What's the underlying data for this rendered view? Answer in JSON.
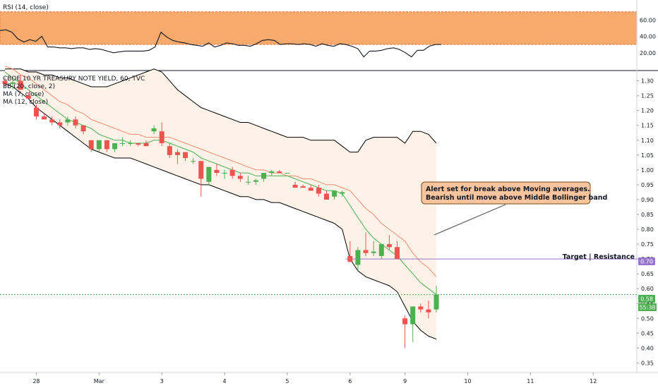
{
  "rsi_panel": {
    "label": "RSI (14, close)",
    "y_ticks": [
      "60.00",
      "40.00",
      "20.00"
    ],
    "band": [
      30,
      70
    ],
    "series": [
      47,
      48,
      45,
      37,
      33,
      36,
      34,
      40,
      27,
      27,
      26,
      26,
      25,
      26,
      26,
      24,
      25,
      24,
      22,
      20,
      21,
      22,
      22,
      22,
      22,
      23,
      27,
      45,
      39,
      35,
      33,
      32,
      30,
      29,
      28,
      32,
      27,
      29,
      32,
      31,
      29,
      29,
      28,
      31,
      35,
      36,
      35,
      30,
      31,
      31,
      30,
      31,
      30,
      28,
      31,
      29,
      28,
      31,
      30,
      28,
      25,
      15,
      22,
      22,
      23,
      25,
      26,
      24,
      20,
      15,
      23,
      23,
      28,
      30,
      30
    ]
  },
  "chart_data": {
    "type": "candlestick",
    "title": "CBOE 10 YR TREASURY NOTE YIELD, 60, TVC",
    "legend": [
      "BB (20, close, 2)",
      "MA (7, close)",
      "MA (12, close)"
    ],
    "x_tick_labels": [
      "28",
      "Mar",
      "3",
      "4",
      "5",
      "6",
      "9",
      "10",
      "11",
      "12"
    ],
    "y_ticks": [
      "1.30",
      "1.25",
      "1.20",
      "1.15",
      "1.10",
      "1.05",
      "1.00",
      "0.95",
      "0.90",
      "0.85",
      "0.80",
      "0.75",
      "0.70",
      "0.65",
      "0.60",
      "0.55",
      "0.50",
      "0.45",
      "0.40",
      "0.35"
    ],
    "ylim": [
      0.32,
      1.33
    ],
    "candles": [
      {
        "o": 1.3,
        "h": 1.31,
        "l": 1.28,
        "c": 1.29
      },
      {
        "o": 1.29,
        "h": 1.305,
        "l": 1.27,
        "c": 1.295
      },
      {
        "o": 1.3,
        "h": 1.32,
        "l": 1.27,
        "c": 1.27
      },
      {
        "o": 1.25,
        "h": 1.26,
        "l": 1.24,
        "c": 1.24
      },
      {
        "o": 1.21,
        "h": 1.22,
        "l": 1.17,
        "c": 1.18
      },
      {
        "o": 1.18,
        "h": 1.19,
        "l": 1.17,
        "c": 1.17
      },
      {
        "o": 1.17,
        "h": 1.18,
        "l": 1.15,
        "c": 1.16
      },
      {
        "o": 1.16,
        "h": 1.17,
        "l": 1.14,
        "c": 1.15
      },
      {
        "o": 1.16,
        "h": 1.18,
        "l": 1.15,
        "c": 1.17
      },
      {
        "o": 1.17,
        "h": 1.18,
        "l": 1.14,
        "c": 1.15
      },
      {
        "o": 1.15,
        "h": 1.15,
        "l": 1.12,
        "c": 1.13
      },
      {
        "o": 1.1,
        "h": 1.1,
        "l": 1.06,
        "c": 1.07
      },
      {
        "o": 1.07,
        "h": 1.1,
        "l": 1.06,
        "c": 1.1
      },
      {
        "o": 1.1,
        "h": 1.1,
        "l": 1.06,
        "c": 1.07
      },
      {
        "o": 1.07,
        "h": 1.09,
        "l": 1.06,
        "c": 1.09
      },
      {
        "o": 1.09,
        "h": 1.11,
        "l": 1.08,
        "c": 1.09
      },
      {
        "o": 1.09,
        "h": 1.1,
        "l": 1.08,
        "c": 1.09
      },
      {
        "o": 1.09,
        "h": 1.09,
        "l": 1.08,
        "c": 1.085
      },
      {
        "o": 1.09,
        "h": 1.1,
        "l": 1.08,
        "c": 1.08
      },
      {
        "o": 1.13,
        "h": 1.15,
        "l": 1.12,
        "c": 1.14
      },
      {
        "o": 1.13,
        "h": 1.16,
        "l": 1.08,
        "c": 1.09
      },
      {
        "o": 1.08,
        "h": 1.09,
        "l": 1.04,
        "c": 1.05
      },
      {
        "o": 1.06,
        "h": 1.07,
        "l": 1.02,
        "c": 1.05
      },
      {
        "o": 1.06,
        "h": 1.06,
        "l": 1.03,
        "c": 1.04
      },
      {
        "o": 1.03,
        "h": 1.04,
        "l": 1.02,
        "c": 1.03
      },
      {
        "o": 1.03,
        "h": 1.03,
        "l": 0.91,
        "c": 0.97
      },
      {
        "o": 0.96,
        "h": 1.01,
        "l": 0.95,
        "c": 1.01
      },
      {
        "o": 1.0,
        "h": 1.02,
        "l": 0.98,
        "c": 0.99
      },
      {
        "o": 0.99,
        "h": 1.0,
        "l": 0.97,
        "c": 0.99
      },
      {
        "o": 1.0,
        "h": 1.01,
        "l": 0.97,
        "c": 0.98
      },
      {
        "o": 0.98,
        "h": 0.99,
        "l": 0.96,
        "c": 0.97
      },
      {
        "o": 0.96,
        "h": 0.98,
        "l": 0.95,
        "c": 0.96
      },
      {
        "o": 0.96,
        "h": 0.97,
        "l": 0.95,
        "c": 0.965
      },
      {
        "o": 0.97,
        "h": 0.99,
        "l": 0.96,
        "c": 0.99
      },
      {
        "o": 0.99,
        "h": 1.0,
        "l": 0.98,
        "c": 0.995
      },
      {
        "o": 0.995,
        "h": 1.0,
        "l": 0.99,
        "c": 0.99
      },
      {
        "o": 0.99,
        "h": 0.99,
        "l": 0.99,
        "c": 0.99
      },
      {
        "o": 0.95,
        "h": 0.96,
        "l": 0.94,
        "c": 0.94
      },
      {
        "o": 0.945,
        "h": 0.95,
        "l": 0.94,
        "c": 0.94
      },
      {
        "o": 0.94,
        "h": 0.95,
        "l": 0.93,
        "c": 0.93
      },
      {
        "o": 0.94,
        "h": 0.95,
        "l": 0.91,
        "c": 0.92
      },
      {
        "o": 0.92,
        "h": 0.93,
        "l": 0.9,
        "c": 0.9
      },
      {
        "o": 0.91,
        "h": 0.93,
        "l": 0.9,
        "c": 0.93
      },
      {
        "o": 0.92,
        "h": 0.93,
        "l": 0.91,
        "c": 0.925
      },
      {
        "o": 0.71,
        "h": 0.76,
        "l": 0.69,
        "c": 0.69
      },
      {
        "o": 0.68,
        "h": 0.74,
        "l": 0.66,
        "c": 0.73
      },
      {
        "o": 0.73,
        "h": 0.79,
        "l": 0.71,
        "c": 0.72
      },
      {
        "o": 0.72,
        "h": 0.76,
        "l": 0.71,
        "c": 0.725
      },
      {
        "o": 0.71,
        "h": 0.75,
        "l": 0.7,
        "c": 0.75
      },
      {
        "o": 0.75,
        "h": 0.78,
        "l": 0.73,
        "c": 0.74
      },
      {
        "o": 0.74,
        "h": 0.76,
        "l": 0.7,
        "c": 0.7
      },
      {
        "o": 0.5,
        "h": 0.51,
        "l": 0.4,
        "c": 0.48
      },
      {
        "o": 0.48,
        "h": 0.54,
        "l": 0.42,
        "c": 0.54
      },
      {
        "o": 0.54,
        "h": 0.55,
        "l": 0.52,
        "c": 0.53
      },
      {
        "o": 0.53,
        "h": 0.56,
        "l": 0.5,
        "c": 0.52
      },
      {
        "o": 0.53,
        "h": 0.61,
        "l": 0.52,
        "c": 0.58
      }
    ],
    "bb_upper": [
      1.34,
      1.34,
      1.34,
      1.33,
      1.33,
      1.32,
      1.32,
      1.31,
      1.31,
      1.3,
      1.29,
      1.28,
      1.28,
      1.28,
      1.29,
      1.3,
      1.31,
      1.32,
      1.33,
      1.34,
      1.33,
      1.3,
      1.27,
      1.25,
      1.23,
      1.21,
      1.2,
      1.19,
      1.18,
      1.17,
      1.16,
      1.16,
      1.15,
      1.14,
      1.13,
      1.12,
      1.11,
      1.11,
      1.11,
      1.1,
      1.1,
      1.1,
      1.1,
      1.08,
      1.06,
      1.06,
      1.1,
      1.11,
      1.11,
      1.11,
      1.11,
      1.09,
      1.13,
      1.13,
      1.12,
      1.09
    ],
    "bb_lower": [
      1.29,
      1.28,
      1.26,
      1.24,
      1.21,
      1.19,
      1.17,
      1.15,
      1.13,
      1.11,
      1.09,
      1.07,
      1.06,
      1.05,
      1.04,
      1.04,
      1.04,
      1.03,
      1.02,
      1.01,
      1.0,
      0.99,
      0.98,
      0.97,
      0.96,
      0.95,
      0.95,
      0.94,
      0.93,
      0.92,
      0.91,
      0.91,
      0.9,
      0.9,
      0.89,
      0.89,
      0.88,
      0.87,
      0.86,
      0.85,
      0.84,
      0.83,
      0.82,
      0.8,
      0.7,
      0.66,
      0.64,
      0.63,
      0.62,
      0.61,
      0.59,
      0.54,
      0.49,
      0.46,
      0.44,
      0.43
    ],
    "ma7": [
      1.33,
      1.31,
      1.29,
      1.27,
      1.25,
      1.23,
      1.21,
      1.19,
      1.17,
      1.16,
      1.15,
      1.14,
      1.12,
      1.11,
      1.1,
      1.1,
      1.09,
      1.09,
      1.09,
      1.1,
      1.1,
      1.09,
      1.08,
      1.07,
      1.06,
      1.04,
      1.03,
      1.02,
      1.01,
      1.0,
      0.99,
      0.99,
      0.98,
      0.98,
      0.98,
      0.98,
      0.98,
      0.97,
      0.96,
      0.95,
      0.94,
      0.93,
      0.93,
      0.92,
      0.88,
      0.84,
      0.8,
      0.77,
      0.75,
      0.73,
      0.71,
      0.68,
      0.65,
      0.62,
      0.6,
      0.58
    ],
    "ma12": [
      1.35,
      1.34,
      1.32,
      1.31,
      1.29,
      1.27,
      1.25,
      1.23,
      1.22,
      1.2,
      1.19,
      1.17,
      1.16,
      1.15,
      1.14,
      1.13,
      1.12,
      1.12,
      1.11,
      1.11,
      1.11,
      1.11,
      1.1,
      1.09,
      1.08,
      1.07,
      1.06,
      1.05,
      1.04,
      1.03,
      1.02,
      1.01,
      1.0,
      1.0,
      0.99,
      0.99,
      0.98,
      0.98,
      0.97,
      0.97,
      0.96,
      0.95,
      0.95,
      0.94,
      0.93,
      0.9,
      0.87,
      0.85,
      0.82,
      0.8,
      0.78,
      0.76,
      0.72,
      0.69,
      0.67,
      0.64
    ],
    "target_level": 0.7,
    "target_label": "Target | Resistance",
    "last_price": 0.58,
    "last_price_tag": "0.58",
    "target_tag": "0.70",
    "countdown": "55:38",
    "annotation": {
      "line1": "Alert set for break above  Moving averages.",
      "line2": "Bearish until move above Middle Bollinger band"
    },
    "colors": {
      "up": "#4caf50",
      "down": "#ef5350",
      "ma7": "#4caf50",
      "ma12": "#ef8a6f",
      "bb": "#000000",
      "bb_fill": "#fdf2e8",
      "rsi_band": "#f8a96c",
      "target_line": "#9575cd",
      "price_line": "#4caf50",
      "annotation_bg": "#f8c49e",
      "annotation_border": "#7a4a1a"
    }
  }
}
